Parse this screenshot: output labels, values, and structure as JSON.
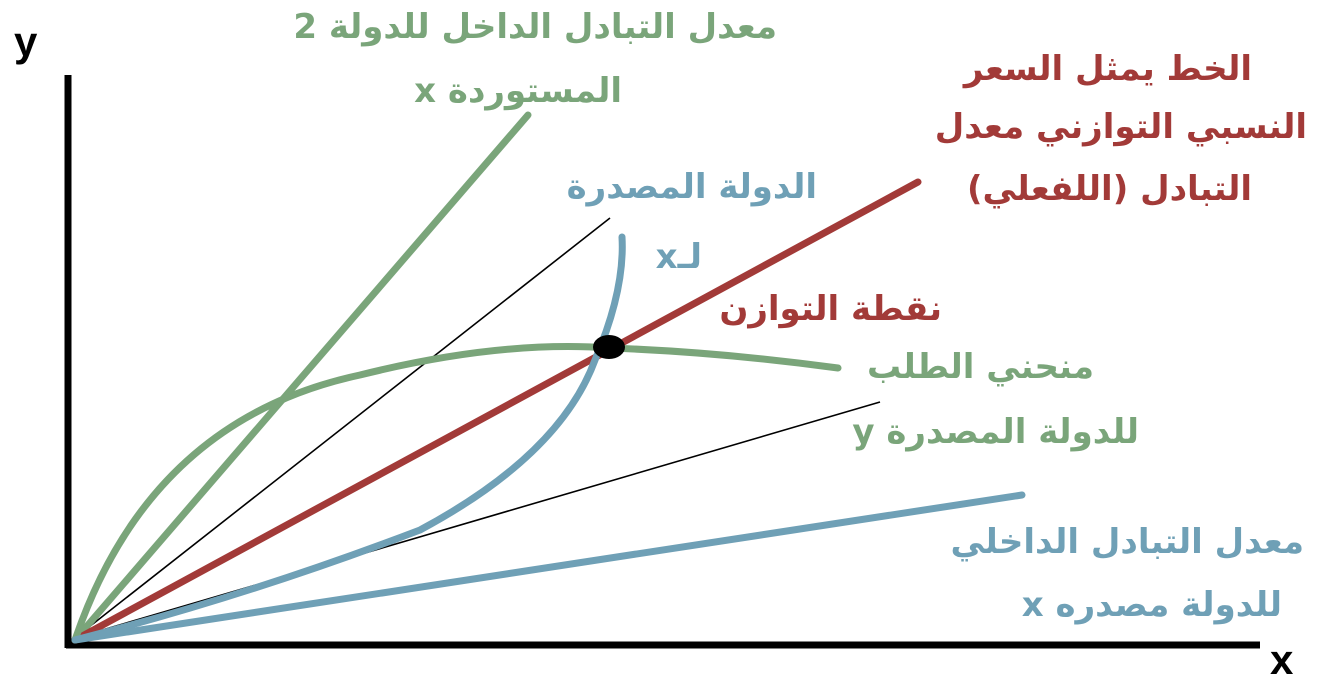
{
  "axes": {
    "x_label": "x",
    "y_label": "y"
  },
  "labels": {
    "green_top_line1": "معدل التبادل الداخل للدولة 2",
    "green_top_line2": "المستوردة x",
    "red_line1": "الخط يمثل السعر",
    "red_line2": "النسبي التوازني معدل",
    "red_line3": "التبادل (اللفعلي)",
    "blue_mid_line1": "الدولة المصدرة",
    "blue_mid_line2": "لـx",
    "equilibrium": "نقطة التوازن",
    "demand_line1": "منحني الطلب",
    "demand_line2": "للدولة المصدرة y",
    "blue_bottom_line1": "معدل التبادل الداخلي",
    "blue_bottom_line2": "للدولة مصدره x"
  },
  "colors": {
    "green": "#7aa57a",
    "red": "#a23a38",
    "blue": "#6fa0b6",
    "black": "#000000"
  }
}
